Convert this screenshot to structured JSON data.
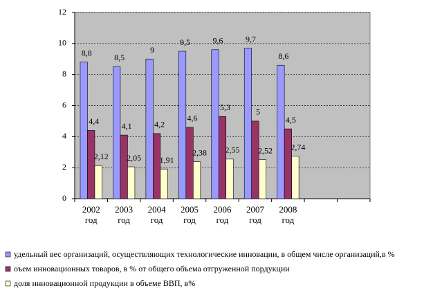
{
  "chart_data": {
    "type": "bar",
    "categories": [
      "2002 год",
      "2003 год",
      "2004 год",
      "2005 год",
      "2006 год",
      "2007 год",
      "2008 год",
      null,
      null
    ],
    "series": [
      {
        "name": "удельный вес организаций, осуществляющих технологические инновации, в общем числе организаций,в %",
        "color": "#9999ff",
        "values": [
          8.8,
          8.5,
          9,
          9.5,
          9.6,
          9.7,
          8.6,
          null,
          null
        ],
        "value_labels": [
          "8,8",
          "8,5",
          "9",
          "9,5",
          "9,6",
          "9,7",
          "8,6",
          null,
          null
        ]
      },
      {
        "name": "оъем инновационных товаров, в % от общего объема отгруженной пордукции",
        "color": "#993366",
        "values": [
          4.4,
          4.1,
          4.2,
          4.6,
          5.3,
          5,
          4.5,
          null,
          null
        ],
        "value_labels": [
          "4,4",
          "4,1",
          "4,2",
          "4,6",
          "5,3",
          "5",
          "4,5",
          null,
          null
        ]
      },
      {
        "name": "доля инновационной продукции в объеме ВВП, в%",
        "color": "#ffffcc",
        "values": [
          2.12,
          2.05,
          1.91,
          2.38,
          2.55,
          2.52,
          2.74,
          null,
          null
        ],
        "value_labels": [
          "2,12",
          "2,05",
          "1,91",
          "2,38",
          "2,55",
          "2,52",
          "2,74",
          null,
          null
        ]
      }
    ],
    "ylim": [
      0,
      12
    ],
    "yticks": [
      0,
      2,
      4,
      6,
      8,
      10,
      12
    ],
    "grid": true,
    "plot_background": "#c0c0c0"
  }
}
